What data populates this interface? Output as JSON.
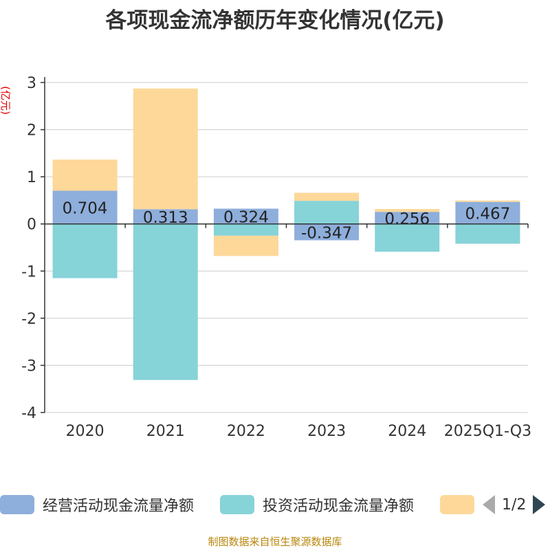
{
  "title": "各项现金流净额历年变化情况(亿元)",
  "source": "制图数据来自恒生聚源数据库",
  "pager": {
    "text": "1/2"
  },
  "colors": {
    "operating": "#8eaedb",
    "investing": "#86d3d8",
    "financing": "#fdd899",
    "axis": "#333333",
    "grid": "#cccccc",
    "unit": "#e00000"
  },
  "chart_data": {
    "type": "bar",
    "stacked": true,
    "title": "各项现金流净额历年变化情况(亿元)",
    "ylabel": "(亿元)",
    "ylim": [
      -4,
      3
    ],
    "yticks": [
      3,
      2,
      1,
      0,
      -1,
      -2,
      -3,
      -4
    ],
    "grid": true,
    "categories": [
      "2020",
      "2021",
      "2022",
      "2023",
      "2024",
      "2025Q1-Q3"
    ],
    "series": [
      {
        "name": "经营活动现金流量净额",
        "key": "operating",
        "values": [
          0.704,
          0.313,
          0.324,
          -0.347,
          0.256,
          0.467
        ],
        "labels": [
          "0.704",
          "0.313",
          "0.324",
          "-0.347",
          "0.256",
          "0.467"
        ]
      },
      {
        "name": "投资活动现金流量净额",
        "key": "investing",
        "values": [
          -1.15,
          -3.31,
          -0.25,
          0.49,
          -0.59,
          -0.42
        ]
      },
      {
        "name": "",
        "key": "financing",
        "values": [
          0.66,
          2.56,
          -0.43,
          0.17,
          0.06,
          0.03
        ]
      }
    ],
    "legend_position": "bottom"
  }
}
